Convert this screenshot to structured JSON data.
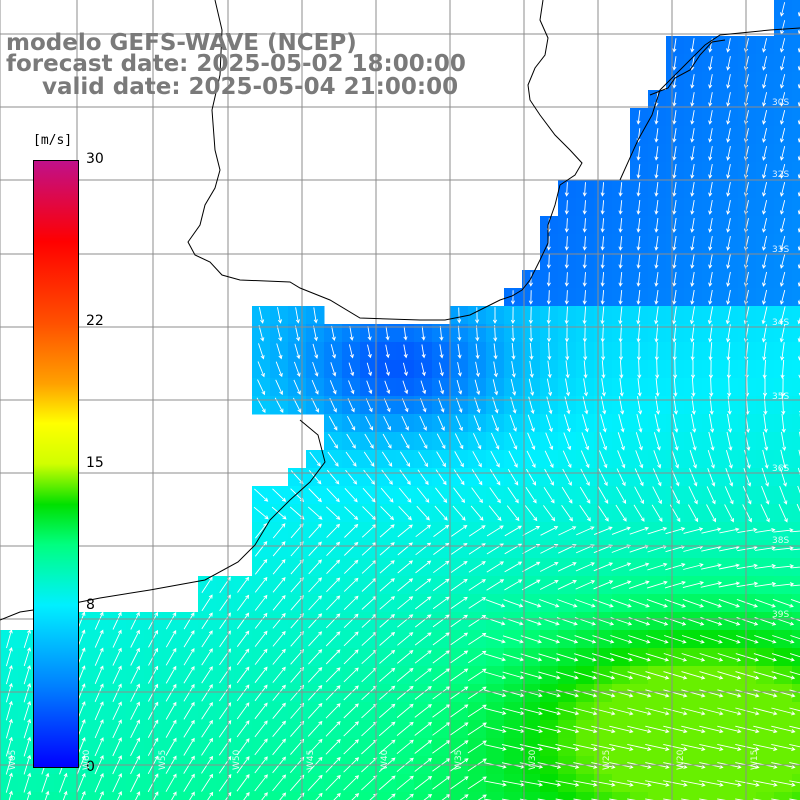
{
  "title": {
    "line1": "modelo GEFS-WAVE (NCEP)",
    "line2": "forecast date: 2025-05-02 18:00:00",
    "line3": "valid date: 2025-05-04 21:00:00"
  },
  "colorbar": {
    "unit": "[m/s]",
    "ticks": [
      "30",
      "22",
      "15",
      "8",
      "0"
    ],
    "tick_values": [
      30,
      22,
      15,
      8,
      0
    ],
    "min": 0,
    "max": 30,
    "stops": [
      {
        "v": 0,
        "color": "#0000ff"
      },
      {
        "v": 4,
        "color": "#0080ff"
      },
      {
        "v": 8,
        "color": "#00f0ff"
      },
      {
        "v": 11,
        "color": "#00ff80"
      },
      {
        "v": 13,
        "color": "#00e000"
      },
      {
        "v": 15,
        "color": "#d0ff00"
      },
      {
        "v": 17,
        "color": "#ffff00"
      },
      {
        "v": 19,
        "color": "#ffa000"
      },
      {
        "v": 22,
        "color": "#ff5000"
      },
      {
        "v": 26,
        "color": "#ff0000"
      },
      {
        "v": 30,
        "color": "#c0108a"
      }
    ]
  },
  "axes": {
    "lon_labels": [
      "W65",
      "W60",
      "W55",
      "W50",
      "W45",
      "W40",
      "W35",
      "W30",
      "W25",
      "W20",
      "W15"
    ],
    "lat_labels": [
      "30S",
      "32S",
      "33S",
      "34S",
      "35S",
      "36S",
      "38S",
      "39S"
    ]
  },
  "colors": {
    "land": "#ffffff",
    "grid": "#8c8c8c",
    "coast": "#000000",
    "vectors": "#ffffff"
  },
  "legend_placement": "left"
}
